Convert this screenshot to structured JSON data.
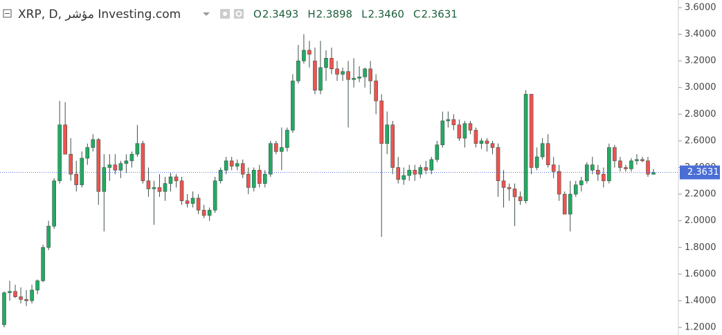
{
  "chart_data": {
    "type": "candlestick",
    "title": "XRP, D, مؤشر Investing.com",
    "ohlc_header": [
      {
        "label": "O",
        "value": "2.3493"
      },
      {
        "label": "H",
        "value": "2.3898"
      },
      {
        "label": "L",
        "value": "2.3460"
      },
      {
        "label": "C",
        "value": "2.3631"
      }
    ],
    "up_color": "#22ab63",
    "down_color": "#ef5350",
    "wick_color": "#3d4f45",
    "last_price": {
      "value": 2.3631,
      "label": "2.3631",
      "color": "#4a6ed6"
    },
    "ylim": [
      1.143,
      3.657
    ],
    "yticks": [
      {
        "value": 1.2,
        "label": "1.2000"
      },
      {
        "value": 1.4,
        "label": "1.4000"
      },
      {
        "value": 1.6,
        "label": "1.6000"
      },
      {
        "value": 1.8,
        "label": "1.8000"
      },
      {
        "value": 2.0,
        "label": "2.0000"
      },
      {
        "value": 2.2,
        "label": "2.2000"
      },
      {
        "value": 2.4,
        "label": "2.4000"
      },
      {
        "value": 2.6,
        "label": "2.6000"
      },
      {
        "value": 2.8,
        "label": "2.8000"
      },
      {
        "value": 3.0,
        "label": "3.0000"
      },
      {
        "value": 3.2,
        "label": "3.2000"
      },
      {
        "value": 3.4,
        "label": "3.4000"
      },
      {
        "value": 3.6,
        "label": "3.6000"
      }
    ],
    "candles": [
      [
        1.22,
        1.47,
        1.2,
        1.46
      ],
      [
        1.46,
        1.55,
        1.4,
        1.47
      ],
      [
        1.47,
        1.52,
        1.42,
        1.43
      ],
      [
        1.43,
        1.5,
        1.38,
        1.41
      ],
      [
        1.41,
        1.48,
        1.36,
        1.4
      ],
      [
        1.4,
        1.52,
        1.38,
        1.48
      ],
      [
        1.48,
        1.56,
        1.45,
        1.55
      ],
      [
        1.55,
        1.82,
        1.54,
        1.8
      ],
      [
        1.8,
        2.0,
        1.78,
        1.96
      ],
      [
        1.96,
        2.32,
        1.94,
        2.3
      ],
      [
        2.3,
        2.9,
        2.28,
        2.72
      ],
      [
        2.72,
        2.89,
        2.5,
        2.5
      ],
      [
        2.5,
        2.62,
        2.3,
        2.35
      ],
      [
        2.35,
        2.45,
        2.22,
        2.27
      ],
      [
        2.27,
        2.52,
        2.25,
        2.47
      ],
      [
        2.47,
        2.58,
        2.42,
        2.55
      ],
      [
        2.55,
        2.65,
        2.52,
        2.61
      ],
      [
        2.61,
        2.62,
        2.12,
        2.22
      ],
      [
        2.22,
        2.5,
        1.92,
        2.4
      ],
      [
        2.4,
        2.5,
        2.3,
        2.42
      ],
      [
        2.42,
        2.5,
        2.35,
        2.38
      ],
      [
        2.38,
        2.45,
        2.32,
        2.43
      ],
      [
        2.43,
        2.5,
        2.36,
        2.45
      ],
      [
        2.45,
        2.52,
        2.4,
        2.5
      ],
      [
        2.5,
        2.72,
        2.48,
        2.58
      ],
      [
        2.58,
        2.6,
        2.28,
        2.3
      ],
      [
        2.3,
        2.4,
        2.18,
        2.24
      ],
      [
        2.24,
        2.3,
        1.97,
        2.25
      ],
      [
        2.25,
        2.35,
        2.18,
        2.22
      ],
      [
        2.22,
        2.33,
        2.15,
        2.28
      ],
      [
        2.28,
        2.36,
        2.22,
        2.33
      ],
      [
        2.33,
        2.35,
        2.25,
        2.3
      ],
      [
        2.3,
        2.33,
        2.12,
        2.15
      ],
      [
        2.15,
        2.2,
        2.1,
        2.13
      ],
      [
        2.13,
        2.22,
        2.1,
        2.17
      ],
      [
        2.17,
        2.2,
        2.05,
        2.08
      ],
      [
        2.08,
        2.12,
        2.02,
        2.04
      ],
      [
        2.04,
        2.1,
        2.0,
        2.08
      ],
      [
        2.08,
        2.33,
        2.06,
        2.3
      ],
      [
        2.3,
        2.4,
        2.28,
        2.38
      ],
      [
        2.38,
        2.48,
        2.35,
        2.45
      ],
      [
        2.45,
        2.48,
        2.38,
        2.41
      ],
      [
        2.41,
        2.46,
        2.38,
        2.43
      ],
      [
        2.43,
        2.46,
        2.32,
        2.35
      ],
      [
        2.35,
        2.4,
        2.2,
        2.25
      ],
      [
        2.25,
        2.4,
        2.22,
        2.38
      ],
      [
        2.38,
        2.42,
        2.25,
        2.28
      ],
      [
        2.28,
        2.38,
        2.25,
        2.35
      ],
      [
        2.35,
        2.6,
        2.33,
        2.58
      ],
      [
        2.58,
        2.6,
        2.5,
        2.52
      ],
      [
        2.52,
        2.7,
        2.38,
        2.55
      ],
      [
        2.55,
        2.7,
        2.52,
        2.68
      ],
      [
        2.68,
        3.1,
        2.66,
        3.05
      ],
      [
        3.05,
        3.32,
        3.03,
        3.2
      ],
      [
        3.2,
        3.4,
        3.18,
        3.28
      ],
      [
        3.28,
        3.35,
        3.15,
        3.25
      ],
      [
        3.2,
        3.3,
        2.95,
        2.98
      ],
      [
        2.98,
        3.35,
        2.95,
        3.15
      ],
      [
        3.15,
        3.28,
        3.05,
        3.22
      ],
      [
        3.22,
        3.3,
        3.1,
        3.14
      ],
      [
        3.14,
        3.2,
        3.05,
        3.1
      ],
      [
        3.1,
        3.15,
        3.05,
        3.12
      ],
      [
        3.12,
        3.2,
        2.7,
        3.06
      ],
      [
        3.06,
        3.22,
        3.0,
        3.07
      ],
      [
        3.07,
        3.16,
        3.04,
        3.08
      ],
      [
        3.08,
        3.15,
        3.0,
        3.14
      ],
      [
        3.14,
        3.2,
        2.95,
        3.05
      ],
      [
        3.05,
        3.1,
        2.8,
        2.9
      ],
      [
        2.9,
        2.95,
        1.88,
        2.58
      ],
      [
        2.58,
        2.82,
        2.5,
        2.72
      ],
      [
        2.72,
        2.75,
        2.35,
        2.4
      ],
      [
        2.4,
        2.48,
        2.28,
        2.31
      ],
      [
        2.31,
        2.4,
        2.27,
        2.34
      ],
      [
        2.34,
        2.42,
        2.3,
        2.38
      ],
      [
        2.38,
        2.42,
        2.3,
        2.35
      ],
      [
        2.35,
        2.42,
        2.32,
        2.4
      ],
      [
        2.4,
        2.45,
        2.35,
        2.38
      ],
      [
        2.38,
        2.48,
        2.35,
        2.46
      ],
      [
        2.46,
        2.6,
        2.44,
        2.57
      ],
      [
        2.57,
        2.82,
        2.55,
        2.75
      ],
      [
        2.75,
        2.82,
        2.7,
        2.76
      ],
      [
        2.76,
        2.8,
        2.68,
        2.72
      ],
      [
        2.72,
        2.76,
        2.6,
        2.62
      ],
      [
        2.62,
        2.75,
        2.55,
        2.73
      ],
      [
        2.73,
        2.75,
        2.65,
        2.68
      ],
      [
        2.68,
        2.7,
        2.55,
        2.58
      ],
      [
        2.58,
        2.62,
        2.54,
        2.6
      ],
      [
        2.6,
        2.62,
        2.52,
        2.58
      ],
      [
        2.58,
        2.6,
        2.5,
        2.55
      ],
      [
        2.55,
        2.58,
        2.18,
        2.3
      ],
      [
        2.3,
        2.38,
        2.1,
        2.25
      ],
      [
        2.25,
        2.28,
        2.15,
        2.24
      ],
      [
        2.24,
        2.28,
        1.96,
        2.18
      ],
      [
        2.18,
        2.22,
        2.12,
        2.15
      ],
      [
        2.15,
        2.98,
        2.13,
        2.95
      ],
      [
        2.95,
        2.95,
        2.35,
        2.4
      ],
      [
        2.4,
        2.55,
        2.38,
        2.48
      ],
      [
        2.48,
        2.62,
        2.46,
        2.58
      ],
      [
        2.58,
        2.65,
        2.4,
        2.42
      ],
      [
        2.42,
        2.48,
        2.32,
        2.37
      ],
      [
        2.37,
        2.42,
        2.15,
        2.2
      ],
      [
        2.2,
        2.22,
        2.05,
        2.05
      ],
      [
        2.05,
        2.3,
        1.92,
        2.2
      ],
      [
        2.2,
        2.3,
        2.18,
        2.27
      ],
      [
        2.27,
        2.33,
        2.22,
        2.3
      ],
      [
        2.3,
        2.44,
        2.28,
        2.42
      ],
      [
        2.38,
        2.48,
        2.35,
        2.42
      ],
      [
        2.38,
        2.42,
        2.3,
        2.35
      ],
      [
        2.35,
        2.4,
        2.25,
        2.3
      ],
      [
        2.3,
        2.58,
        2.28,
        2.55
      ],
      [
        2.55,
        2.57,
        2.4,
        2.45
      ],
      [
        2.45,
        2.48,
        2.37,
        2.4
      ],
      [
        2.4,
        2.42,
        2.37,
        2.39
      ],
      [
        2.39,
        2.47,
        2.37,
        2.45
      ],
      [
        2.45,
        2.5,
        2.42,
        2.46
      ],
      [
        2.46,
        2.48,
        2.44,
        2.45
      ],
      [
        2.45,
        2.48,
        2.33,
        2.35
      ],
      [
        2.3493,
        2.3898,
        2.346,
        2.3631
      ]
    ]
  }
}
